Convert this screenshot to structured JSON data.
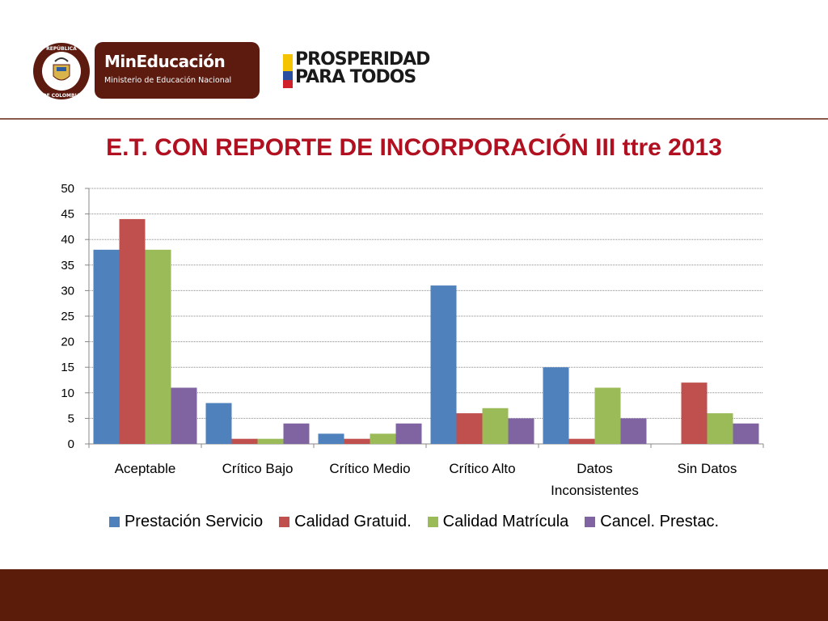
{
  "header": {
    "seal_top_text": "REPÚBLICA",
    "seal_bottom_text": "DE COLOMBIA",
    "ministry_title": "MinEducación",
    "ministry_subtitle": "Ministerio de Educación Nacional",
    "prosperity_line1": "PROSPERIDAD",
    "prosperity_line2": "PARA TODOS"
  },
  "colors": {
    "brand_brown": "#5d1b10",
    "title_red": "#b01020",
    "series": [
      "#4f81bd",
      "#c0504d",
      "#9bbb59",
      "#8064a2"
    ]
  },
  "chart_data": {
    "type": "bar",
    "title": "E.T. CON REPORTE DE INCORPORACIÓN III ttre 2013",
    "categories": [
      "Aceptable",
      "Crítico Bajo",
      "Crítico Medio",
      "Crítico Alto",
      "Datos Inconsistentes",
      "Sin Datos"
    ],
    "category_lines": [
      [
        "Aceptable"
      ],
      [
        "Crítico Bajo"
      ],
      [
        "Crítico Medio"
      ],
      [
        "Crítico Alto"
      ],
      [
        "Datos",
        "Inconsistentes"
      ],
      [
        "Sin Datos"
      ]
    ],
    "series": [
      {
        "name": "Prestación Servicio",
        "values": [
          38,
          8,
          2,
          31,
          15,
          0
        ]
      },
      {
        "name": "Calidad Gratuid.",
        "values": [
          44,
          1,
          1,
          6,
          1,
          12
        ]
      },
      {
        "name": "Calidad Matrícula",
        "values": [
          38,
          1,
          2,
          7,
          11,
          6
        ]
      },
      {
        "name": "Cancel. Prestac.",
        "values": [
          11,
          4,
          4,
          5,
          5,
          4
        ]
      }
    ],
    "ylim": [
      0,
      50
    ],
    "yticks": [
      0,
      5,
      10,
      15,
      20,
      25,
      30,
      35,
      40,
      45,
      50
    ],
    "grid": true,
    "legend": "bottom"
  }
}
